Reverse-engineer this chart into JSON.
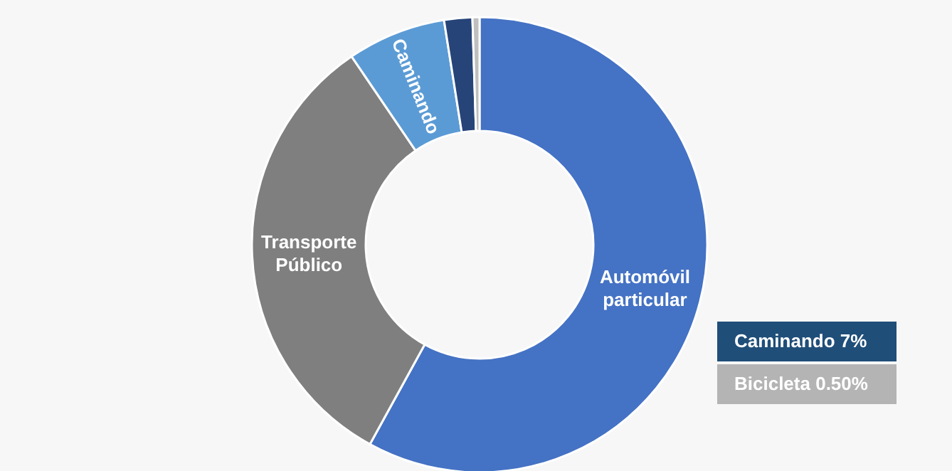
{
  "chart_data": {
    "type": "donut",
    "categories": [
      "Automóvil particular",
      "Transporte Público",
      "Caminando",
      null,
      null
    ],
    "values": [
      58,
      32.5,
      7,
      2,
      0.5
    ],
    "colors": [
      "#4472c4",
      "#7f7f7f",
      "#5b9bd5",
      "#264478",
      "#bfbfbf"
    ],
    "annotations": [
      "Caminando 7%",
      "Bicicleta 0.50%"
    ]
  }
}
